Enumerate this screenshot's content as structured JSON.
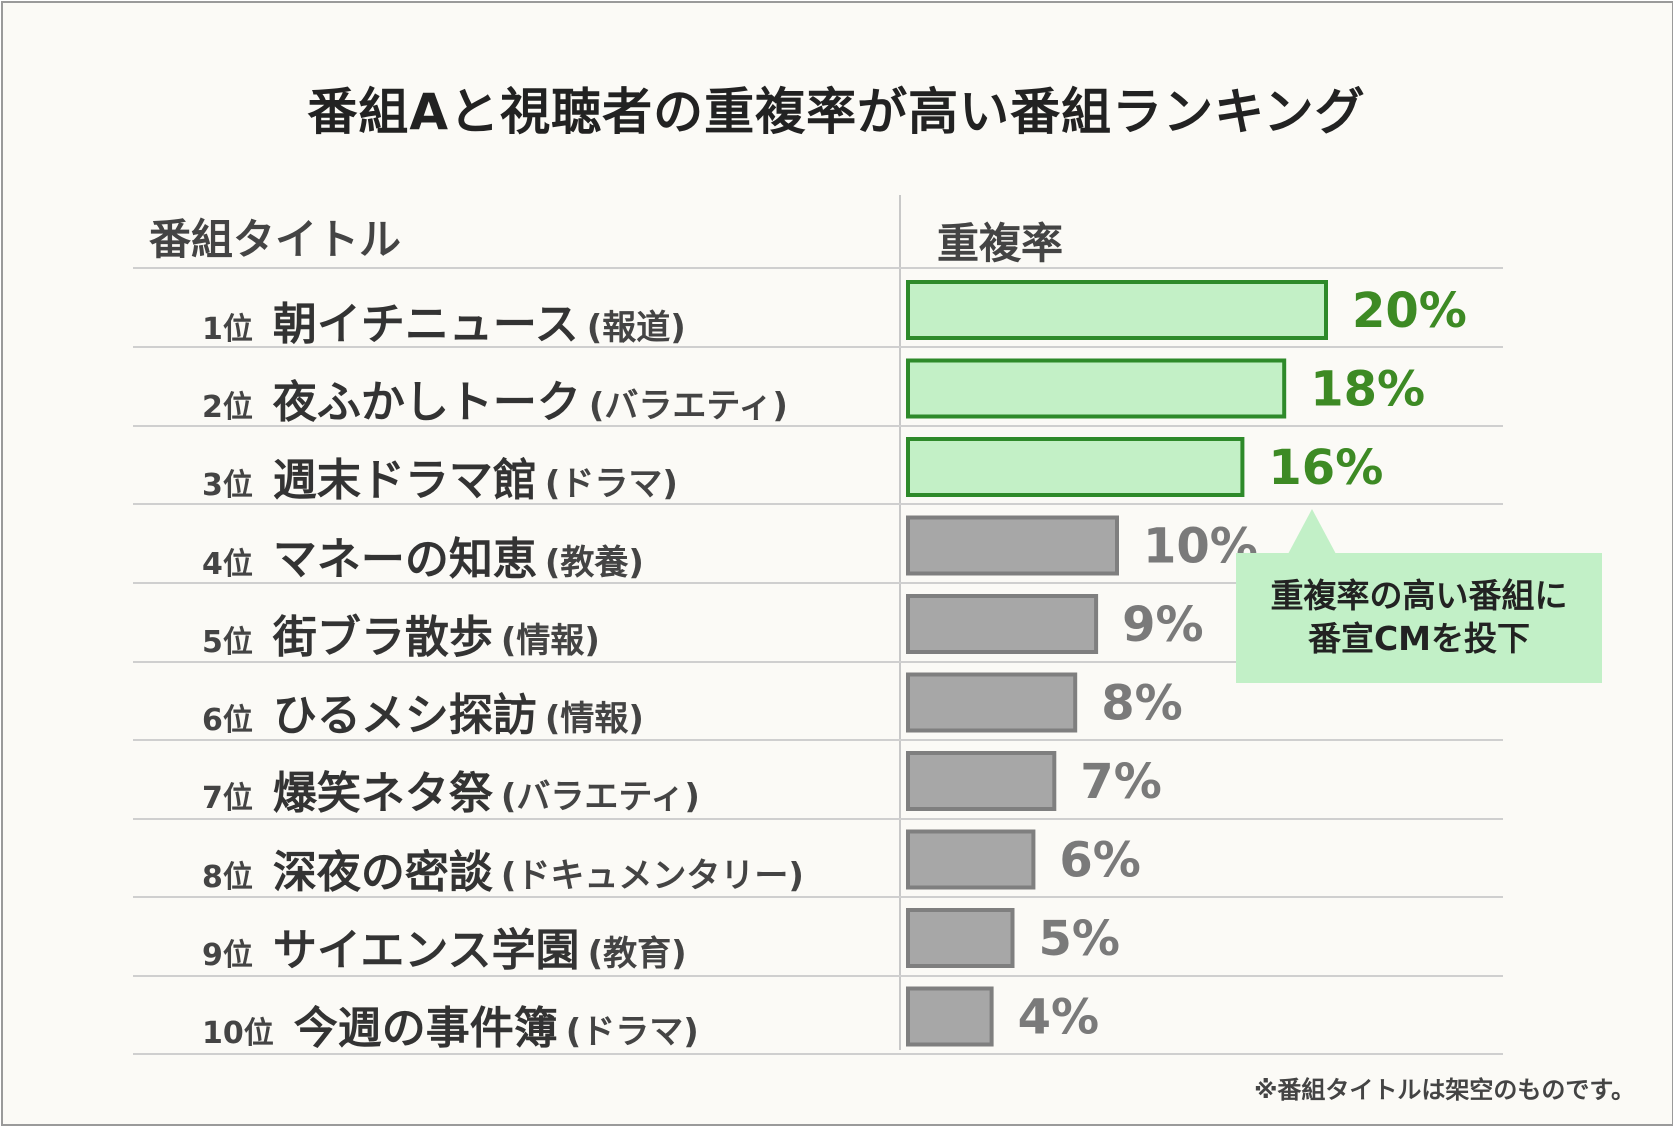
{
  "title": "番組Aと視聴者の重複率が高い番組ランキング",
  "columns": {
    "title": "番組タイトル",
    "rate": "重複率"
  },
  "colors": {
    "highlight_fill": "#c3f0c6",
    "highlight_stroke": "#2e8a2a",
    "highlight_text": "#3d8a24",
    "other_fill": "#a7a7a7",
    "other_stroke": "#7f7f7f",
    "other_text": "#7a7a7a"
  },
  "chart_data": {
    "type": "bar",
    "orientation": "horizontal",
    "categories": [
      "朝イチニュース",
      "夜ふかしトーク",
      "週末ドラマ館",
      "マネーの知恵",
      "街ブラ散歩",
      "ひるメシ探訪",
      "爆笑ネタ祭",
      "深夜の密談",
      "サイエンス学園",
      "今週の事件簿"
    ],
    "values": [
      20,
      18,
      16,
      10,
      9,
      8,
      7,
      6,
      5,
      4
    ],
    "unit": "%",
    "xlim": [
      0,
      20
    ],
    "highlighted": [
      true,
      true,
      true,
      false,
      false,
      false,
      false,
      false,
      false,
      false
    ]
  },
  "rows": [
    {
      "rank": "1位",
      "name": "朝イチニュース",
      "genre": "(報道)",
      "value_label": "20%"
    },
    {
      "rank": "2位",
      "name": "夜ふかしトーク",
      "genre": "(バラエティ)",
      "value_label": "18%"
    },
    {
      "rank": "3位",
      "name": "週末ドラマ館",
      "genre": "(ドラマ)",
      "value_label": "16%"
    },
    {
      "rank": "4位",
      "name": "マネーの知恵",
      "genre": "(教養)",
      "value_label": "10%"
    },
    {
      "rank": "5位",
      "name": "街ブラ散歩",
      "genre": "(情報)",
      "value_label": "9%"
    },
    {
      "rank": "6位",
      "name": "ひるメシ探訪",
      "genre": "(情報)",
      "value_label": "8%"
    },
    {
      "rank": "7位",
      "name": "爆笑ネタ祭",
      "genre": "(バラエティ)",
      "value_label": "7%"
    },
    {
      "rank": "8位",
      "name": "深夜の密談",
      "genre": "(ドキュメンタリー)",
      "value_label": "6%"
    },
    {
      "rank": "9位",
      "name": "サイエンス学園",
      "genre": "(教育)",
      "value_label": "5%"
    },
    {
      "rank": "10位",
      "name": "今週の事件簿",
      "genre": "(ドラマ)",
      "value_label": "4%"
    }
  ],
  "callout": {
    "line1": "重複率の高い番組に",
    "line2": "番宣CMを投下"
  },
  "note": "※番組タイトルは架空のものです。"
}
